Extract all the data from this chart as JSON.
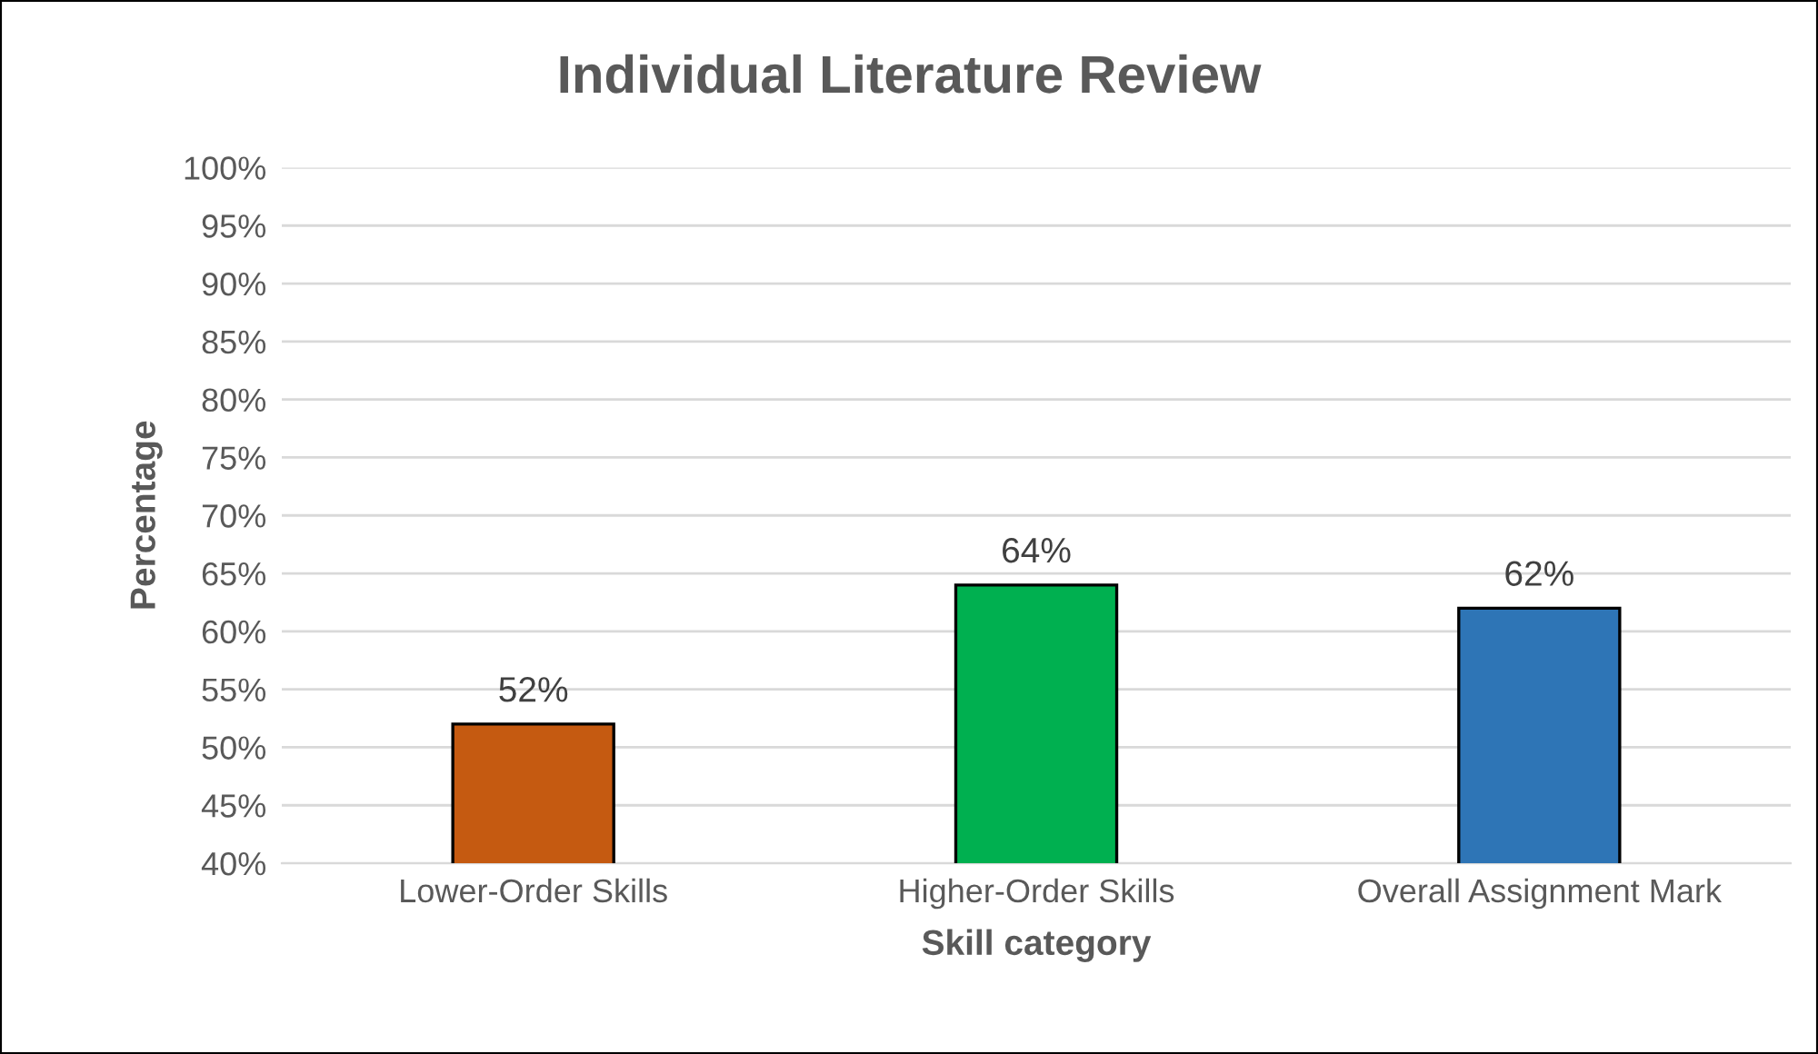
{
  "chart_data": {
    "type": "bar",
    "title": "Individual Literature Review",
    "xlabel": "Skill category",
    "ylabel": "Percentage",
    "categories": [
      "Lower-Order Skills",
      "Higher-Order Skills",
      "Overall Assignment Mark"
    ],
    "values": [
      52,
      64,
      62
    ],
    "colors": [
      "#c55a11",
      "#00b050",
      "#2e75b6"
    ],
    "value_labels": [
      "52%",
      "64%",
      "62%"
    ],
    "ylim": [
      40,
      100
    ],
    "yticks": [
      {
        "value": 40,
        "label": "40%"
      },
      {
        "value": 45,
        "label": "45%"
      },
      {
        "value": 50,
        "label": "50%"
      },
      {
        "value": 55,
        "label": "55%"
      },
      {
        "value": 60,
        "label": "60%"
      },
      {
        "value": 65,
        "label": "65%"
      },
      {
        "value": 70,
        "label": "70%"
      },
      {
        "value": 75,
        "label": "75%"
      },
      {
        "value": 80,
        "label": "80%"
      },
      {
        "value": 85,
        "label": "85%"
      },
      {
        "value": 90,
        "label": "90%"
      },
      {
        "value": 95,
        "label": "95%"
      },
      {
        "value": 100,
        "label": "100%"
      }
    ],
    "grid": "y",
    "legend": false
  }
}
